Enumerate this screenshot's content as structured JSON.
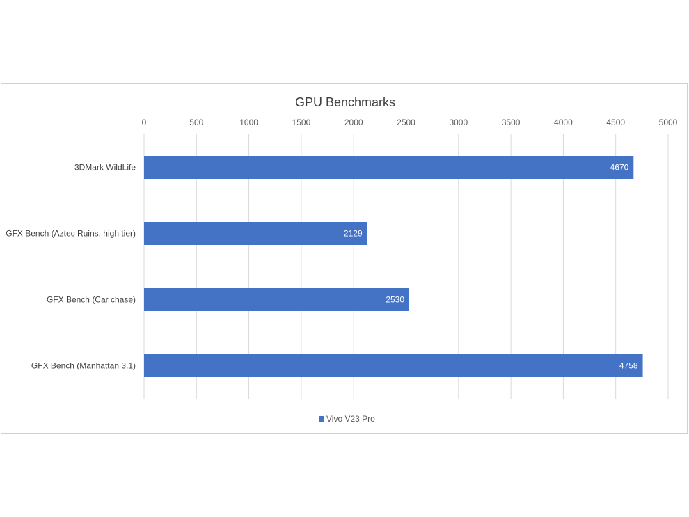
{
  "chart_data": {
    "type": "bar",
    "orientation": "horizontal",
    "title": "GPU Benchmarks",
    "categories": [
      "3DMark WildLife",
      "GFX Bench (Aztec Ruins, high tier)",
      "GFX Bench (Car chase)",
      "GFX Bench (Manhattan 3.1)"
    ],
    "series": [
      {
        "name": "Vivo V23 Pro",
        "values": [
          4670,
          2129,
          2530,
          4758
        ],
        "color": "#4472C4"
      }
    ],
    "x_ticks": [
      "0",
      "500",
      "1000",
      "1500",
      "2000",
      "2500",
      "3000",
      "3500",
      "4000",
      "4500",
      "5000"
    ],
    "xlim": [
      0,
      5000
    ],
    "xaxis_position": "top",
    "grid": true,
    "data_labels": true,
    "legend_position": "bottom"
  }
}
